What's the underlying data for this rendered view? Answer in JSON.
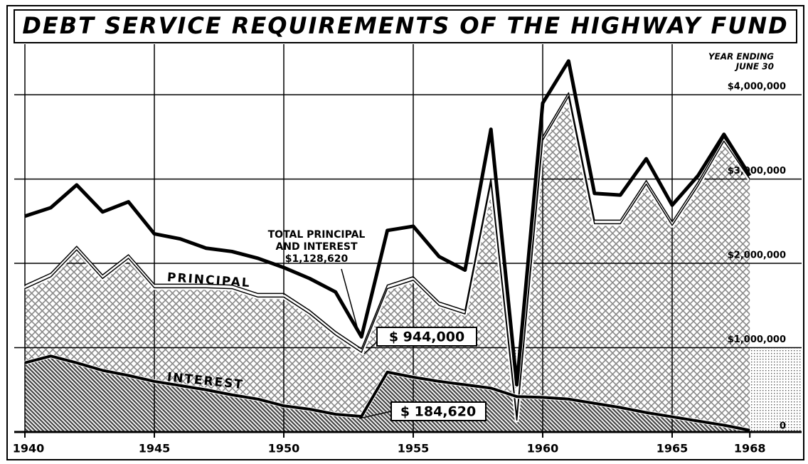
{
  "chart_data": {
    "type": "area",
    "title": "DEBT SERVICE REQUIREMENTS OF THE HIGHWAY FUND",
    "x": [
      1940,
      1941,
      1942,
      1943,
      1944,
      1945,
      1946,
      1947,
      1948,
      1949,
      1950,
      1951,
      1952,
      1953,
      1954,
      1955,
      1956,
      1957,
      1958,
      1959,
      1960,
      1961,
      1962,
      1963,
      1964,
      1965,
      1966,
      1967,
      1968
    ],
    "series": [
      {
        "name": "PRINCIPAL",
        "color": "#888888",
        "style": "area",
        "values": [
          1700000,
          1840000,
          2160000,
          1820000,
          2060000,
          1710000,
          1710000,
          1710000,
          1700000,
          1600000,
          1600000,
          1400000,
          1150000,
          944000,
          1700000,
          1800000,
          1500000,
          1400000,
          2960000,
          140000,
          3460000,
          3980000,
          2470000,
          2470000,
          2940000,
          2450000,
          2920000,
          3450000,
          3000000
        ]
      },
      {
        "name": "INTEREST",
        "color": "#444444",
        "style": "area",
        "values": [
          820000,
          900000,
          820000,
          730000,
          670000,
          600000,
          550000,
          500000,
          440000,
          390000,
          310000,
          270000,
          210000,
          184620,
          710000,
          650000,
          600000,
          560000,
          520000,
          420000,
          410000,
          390000,
          340000,
          290000,
          230000,
          180000,
          130000,
          80000,
          20000
        ]
      },
      {
        "name": "TOTAL PRINCIPAL AND INTEREST",
        "color": "#000000",
        "style": "line",
        "values": [
          2560000,
          2660000,
          2930000,
          2610000,
          2730000,
          2350000,
          2290000,
          2180000,
          2140000,
          2060000,
          1950000,
          1820000,
          1660000,
          1128620,
          2390000,
          2440000,
          2080000,
          1920000,
          3590000,
          560000,
          3900000,
          4400000,
          2830000,
          2810000,
          3240000,
          2690000,
          3040000,
          3530000,
          3040000
        ]
      }
    ],
    "annotations": {
      "year_ending": [
        "YEAR ENDING",
        "JUNE 30"
      ],
      "total_label": [
        "TOTAL PRINCIPAL",
        "AND INTEREST",
        "$1,128,620"
      ],
      "principal_value": "$ 944,000",
      "interest_value": "$ 184,620"
    },
    "xlim": [
      1940,
      1970
    ],
    "xticks": [
      1940,
      1945,
      1950,
      1955,
      1960,
      1965,
      1968
    ],
    "ylim": [
      0,
      4600000
    ],
    "yticks": [
      0,
      {
        "value": 1000000,
        "label": "$1,000,000"
      },
      {
        "value": 2000000,
        "label": "$2,000,000"
      },
      {
        "value": 3000000,
        "label": "$3,000,000"
      },
      {
        "value": 4000000,
        "label": "$4,000,000"
      }
    ],
    "grid": true
  }
}
